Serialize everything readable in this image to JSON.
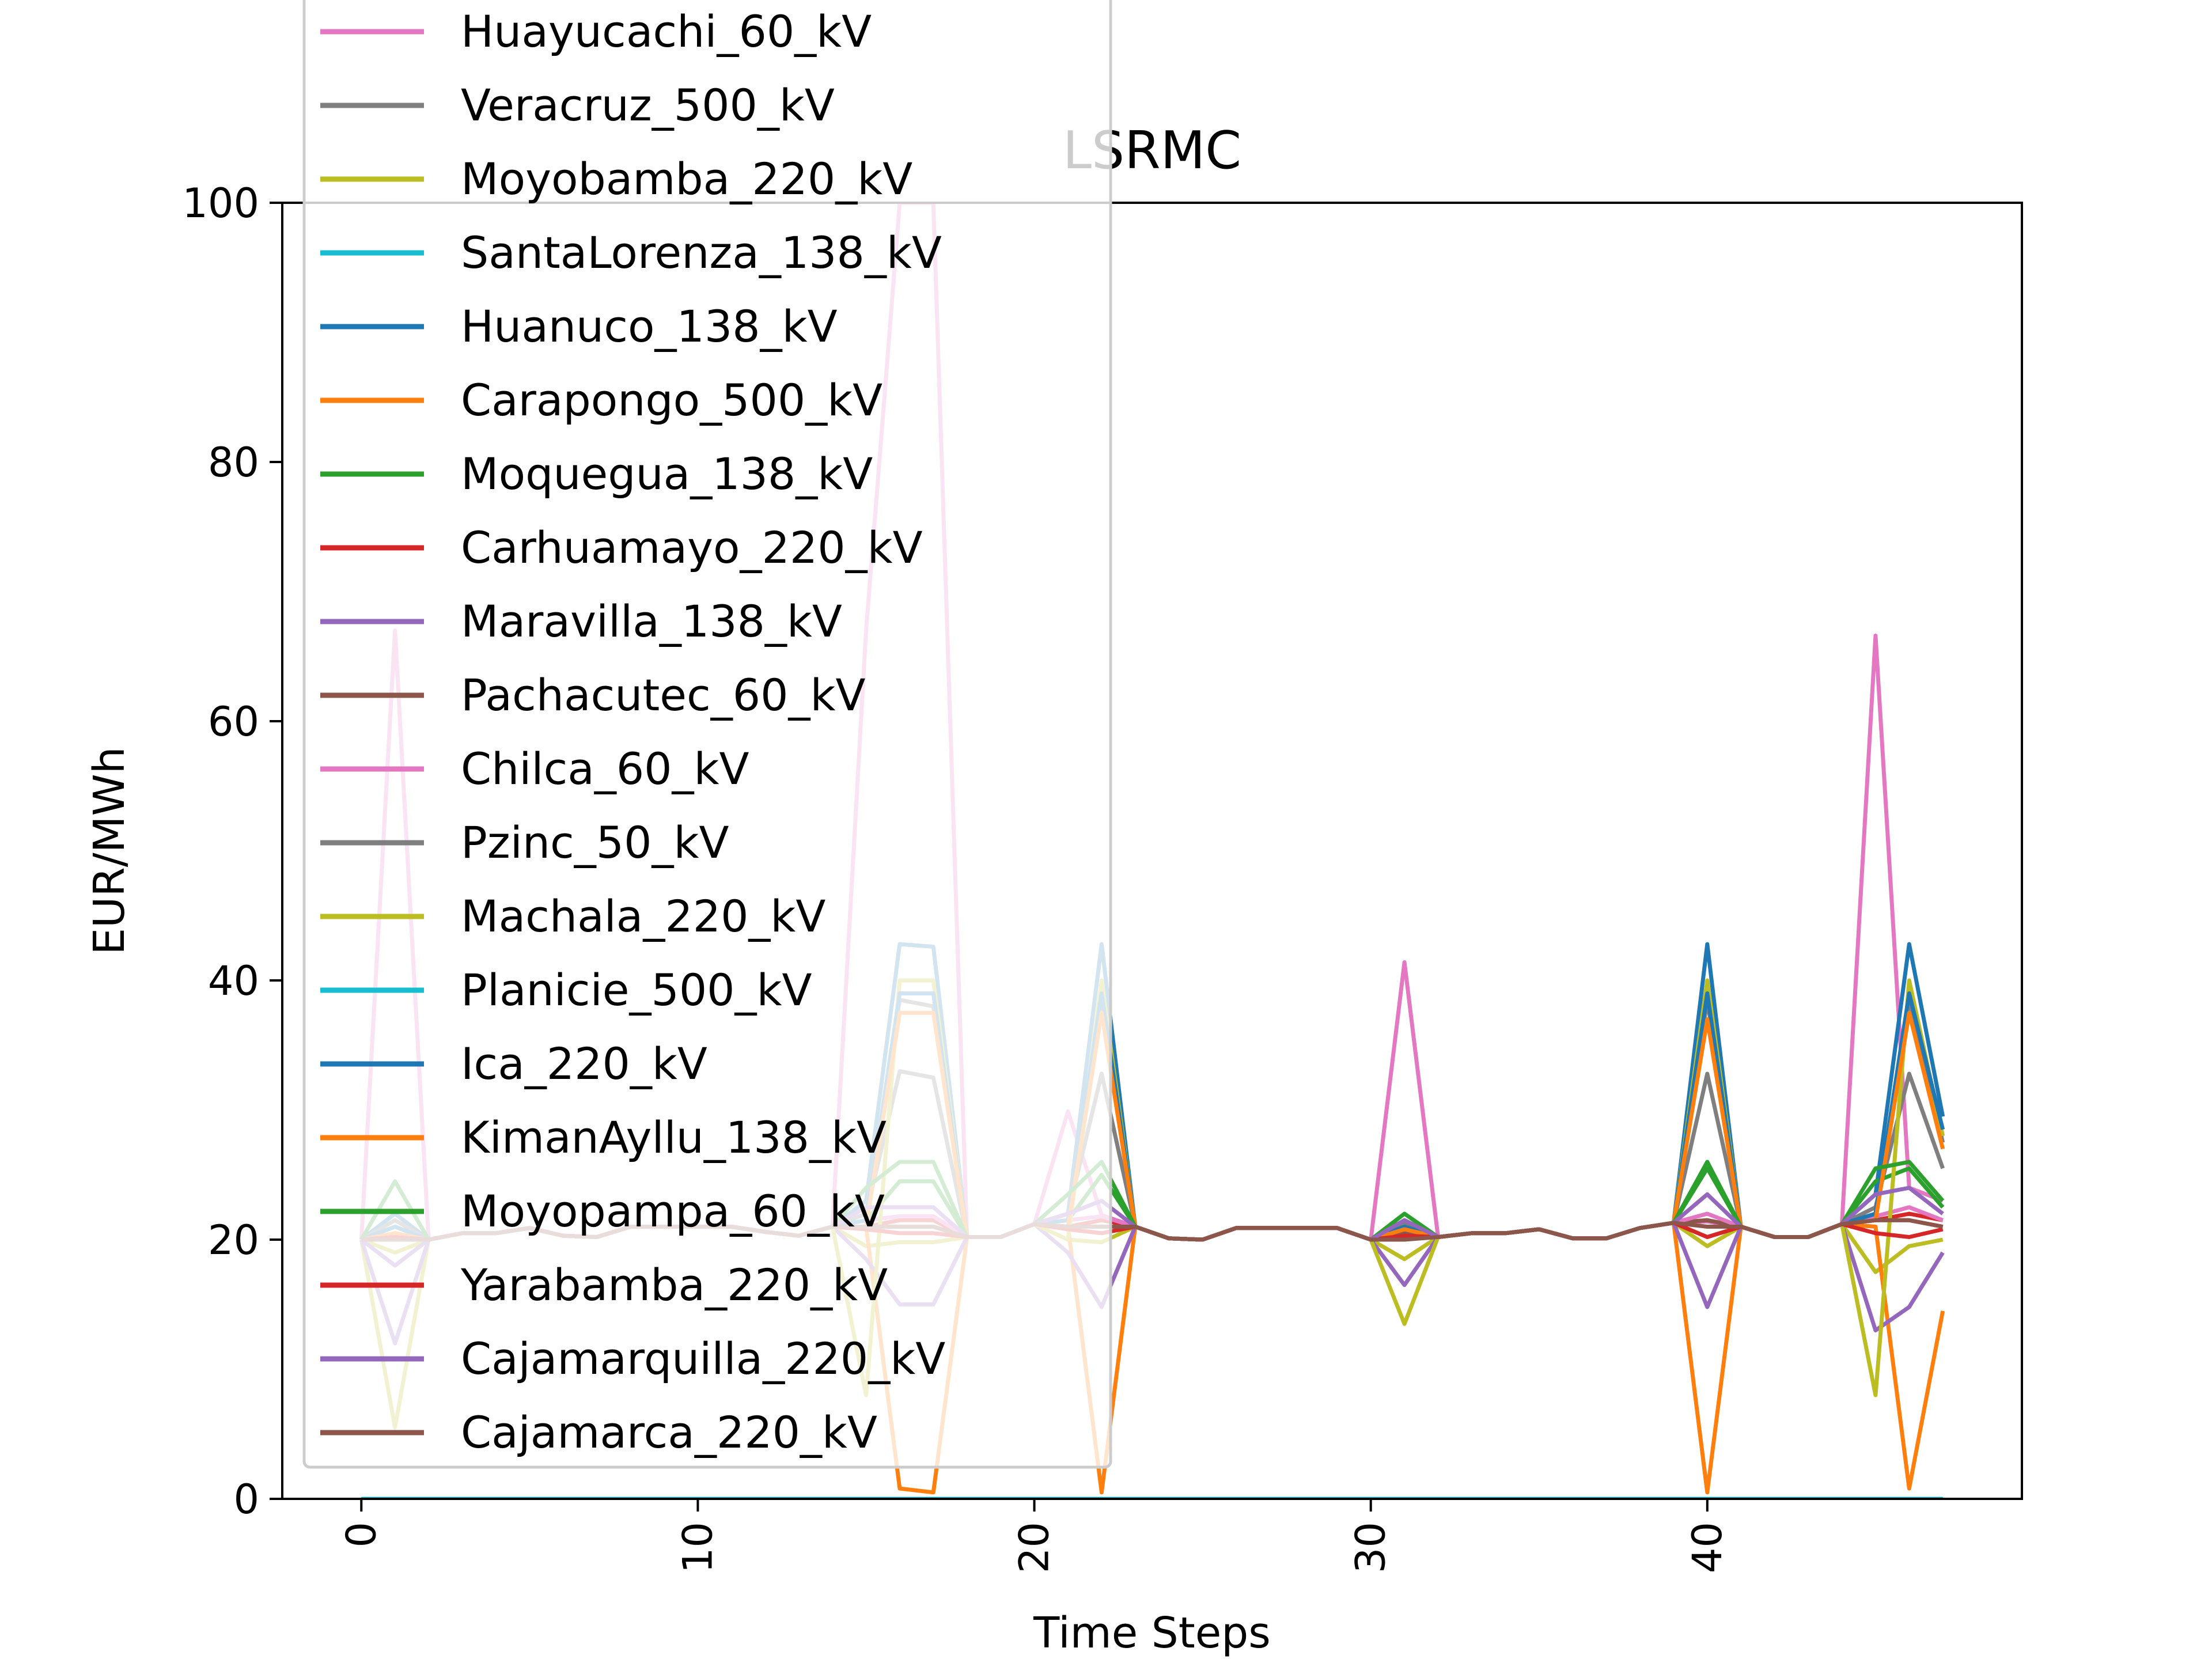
{
  "chart_data": {
    "type": "line",
    "title": "LSRMC",
    "xlabel": "Time Steps",
    "ylabel": "EUR/MWh",
    "xlim": [
      -2.35,
      49.35
    ],
    "ylim": [
      0,
      100
    ],
    "x_ticks": [
      0,
      10,
      20,
      30,
      40
    ],
    "y_ticks": [
      0,
      20,
      40,
      60,
      80,
      100
    ],
    "grid": false,
    "legend_position": "upper-left",
    "x": [
      0,
      1,
      2,
      3,
      4,
      5,
      6,
      7,
      8,
      9,
      10,
      11,
      12,
      13,
      14,
      15,
      16,
      17,
      18,
      19,
      20,
      21,
      22,
      23,
      24,
      25,
      26,
      27,
      28,
      29,
      30,
      31,
      32,
      33,
      34,
      35,
      36,
      37,
      38,
      39,
      40,
      41,
      42,
      43,
      44,
      45,
      46,
      47
    ],
    "series": [
      {
        "name": "Huayucachi_60_kV",
        "color": "#e377c2",
        "values": [
          20,
          67,
          20,
          20.5,
          20.5,
          20.9,
          20.3,
          20.2,
          21,
          21,
          21,
          21,
          20.6,
          20.3,
          21,
          67,
          100,
          100,
          20.2,
          20.2,
          21.2,
          29.9,
          21.9,
          21,
          20.1,
          20,
          20.9,
          20.9,
          20.9,
          20.9,
          20,
          41.4,
          20.2,
          20.5,
          20.5,
          20.8,
          20.1,
          20.1,
          20.9,
          21.3,
          21.4,
          21,
          20.2,
          20.2,
          21.2,
          66.6,
          24,
          23
        ]
      },
      {
        "name": "Veracruz_500_kV",
        "color": "#7f7f7f",
        "values": [
          20,
          22,
          20,
          20.5,
          20.5,
          20.9,
          20.3,
          20.2,
          21,
          21,
          21,
          21,
          20.6,
          20.3,
          21,
          22,
          33,
          32.5,
          20.2,
          20.2,
          21.2,
          22,
          32.8,
          21,
          20.1,
          20,
          20.9,
          20.9,
          20.9,
          20.9,
          20,
          21.2,
          20.2,
          20.5,
          20.5,
          20.8,
          20.1,
          20.1,
          20.9,
          21.3,
          32.8,
          21,
          20.2,
          20.2,
          21.2,
          22.5,
          32.8,
          25.5
        ]
      },
      {
        "name": "Moyobamba_220_kV",
        "color": "#bcbd22",
        "values": [
          20,
          19,
          20,
          20.5,
          20.5,
          20.9,
          20.3,
          20.2,
          21,
          21,
          21,
          21,
          20.6,
          20.3,
          21,
          19.5,
          19.8,
          19.8,
          20.2,
          20.2,
          21.2,
          20,
          19.8,
          21,
          20.1,
          20,
          20.9,
          20.9,
          20.9,
          20.9,
          20,
          18.5,
          20.2,
          20.5,
          20.5,
          20.8,
          20.1,
          20.1,
          20.9,
          21.3,
          19.5,
          21,
          20.2,
          20.2,
          21.2,
          17.5,
          19.5,
          20
        ]
      },
      {
        "name": "SantaLorenza_138_kV",
        "color": "#17becf",
        "values": [
          0,
          0,
          0,
          0,
          0,
          0,
          0,
          0,
          0,
          0,
          0,
          0,
          0,
          0,
          0,
          0,
          0,
          0,
          0,
          0,
          0,
          0,
          0,
          0,
          0,
          0,
          0,
          0,
          0,
          0,
          0,
          0,
          0,
          0,
          0,
          0,
          0,
          0,
          0,
          0,
          0,
          0,
          0,
          0,
          0,
          0,
          0,
          0
        ]
      },
      {
        "name": "Huanuco_138_kV",
        "color": "#1f77b4",
        "values": [
          20,
          22,
          20,
          20.5,
          20.5,
          20.9,
          20.3,
          20.2,
          21,
          21,
          21,
          21,
          20.6,
          20.3,
          21,
          23,
          42.8,
          42.6,
          20.2,
          20.2,
          21.2,
          22,
          42.8,
          21,
          20.1,
          20,
          20.9,
          20.9,
          20.9,
          20.9,
          20,
          21.5,
          20.2,
          20.5,
          20.5,
          20.8,
          20.1,
          20.1,
          20.9,
          21.3,
          42.8,
          21,
          20.2,
          20.2,
          21.2,
          23.5,
          42.8,
          29.5
        ]
      },
      {
        "name": "Carapongo_500_kV",
        "color": "#ff7f0e",
        "values": [
          20,
          20.5,
          20,
          20.5,
          20.5,
          20.9,
          20.3,
          20.2,
          21,
          21,
          21,
          21,
          20.6,
          20.3,
          21,
          21,
          0.8,
          0.5,
          20.2,
          20.2,
          21.2,
          21,
          0.5,
          21,
          20.1,
          20,
          20.9,
          20.9,
          20.9,
          20.9,
          20,
          20.5,
          20.2,
          20.5,
          20.5,
          20.8,
          20.1,
          20.1,
          20.9,
          21.3,
          0.5,
          21,
          20.2,
          20.2,
          21.2,
          21,
          0.8,
          14.5
        ]
      },
      {
        "name": "Moquegua_138_kV",
        "color": "#2ca02c",
        "values": [
          20,
          21,
          20,
          20.5,
          20.5,
          20.9,
          20.3,
          20.2,
          21,
          21,
          21,
          21,
          20.6,
          20.3,
          21,
          21.5,
          24.5,
          24.5,
          20.2,
          20.2,
          21.2,
          21.5,
          25,
          21,
          20.1,
          20,
          20.9,
          20.9,
          20.9,
          20.9,
          20,
          21.5,
          20.2,
          20.5,
          20.5,
          20.8,
          20.1,
          20.1,
          20.9,
          21.3,
          25.5,
          21,
          20.2,
          20.2,
          21.2,
          24.5,
          25.5,
          22.5
        ]
      },
      {
        "name": "Carhuamayo_220_kV",
        "color": "#d62728",
        "values": [
          20,
          20.3,
          20,
          20.5,
          20.5,
          20.9,
          20.3,
          20.2,
          21,
          21,
          21,
          21,
          20.6,
          20.3,
          21,
          21,
          21.5,
          21.5,
          20.2,
          20.2,
          21.2,
          21,
          21.5,
          21,
          20.1,
          20,
          20.9,
          20.9,
          20.9,
          20.9,
          20,
          20.5,
          20.2,
          20.5,
          20.5,
          20.8,
          20.1,
          20.1,
          20.9,
          21.3,
          21.5,
          21,
          20.2,
          20.2,
          21.2,
          21.5,
          22,
          21.5
        ]
      },
      {
        "name": "Maravilla_138_kV",
        "color": "#9467bd",
        "values": [
          20,
          18,
          20,
          20.5,
          20.5,
          20.9,
          20.3,
          20.2,
          21,
          21,
          21,
          21,
          20.6,
          20.3,
          21,
          18.5,
          15,
          15,
          20.2,
          20.2,
          21.2,
          19,
          14.8,
          21,
          20.1,
          20,
          20.9,
          20.9,
          20.9,
          20.9,
          20,
          16.5,
          20.2,
          20.5,
          20.5,
          20.8,
          20.1,
          20.1,
          20.9,
          21.3,
          14.8,
          21,
          20.2,
          20.2,
          21.2,
          13,
          14.8,
          19
        ]
      },
      {
        "name": "Pachacutec_60_kV",
        "color": "#8c564b",
        "values": [
          20,
          20.3,
          20,
          20.5,
          20.5,
          20.9,
          20.3,
          20.2,
          21,
          21,
          21,
          21,
          20.6,
          20.3,
          21,
          21,
          21,
          21,
          20.2,
          20.2,
          21.2,
          21,
          21,
          21,
          20.1,
          20,
          20.9,
          20.9,
          20.9,
          20.9,
          20,
          20.5,
          20.2,
          20.5,
          20.5,
          20.8,
          20.1,
          20.1,
          20.9,
          21.3,
          21.5,
          21,
          20.2,
          20.2,
          21.2,
          21.5,
          21.5,
          21
        ]
      },
      {
        "name": "Chilca_60_kV",
        "color": "#e377c2",
        "values": [
          20,
          20.5,
          20,
          20.5,
          20.5,
          20.9,
          20.3,
          20.2,
          21,
          21,
          21,
          21,
          20.6,
          20.3,
          21,
          21.5,
          21.8,
          21.8,
          20.2,
          20.2,
          21.2,
          21.5,
          21.8,
          21,
          20.1,
          20,
          20.9,
          20.9,
          20.9,
          20.9,
          20,
          20.8,
          20.2,
          20.5,
          20.5,
          20.8,
          20.1,
          20.1,
          20.9,
          21.3,
          22,
          21,
          20.2,
          20.2,
          21.2,
          21.8,
          22.5,
          21.5
        ]
      },
      {
        "name": "Pzinc_50_kV",
        "color": "#7f7f7f",
        "values": [
          20,
          21.5,
          20,
          20.5,
          20.5,
          20.9,
          20.3,
          20.2,
          21,
          21,
          21,
          21,
          20.6,
          20.3,
          21,
          22,
          38.5,
          38,
          20.2,
          20.2,
          21.2,
          22,
          38.5,
          21,
          20.1,
          20,
          20.9,
          20.9,
          20.9,
          20.9,
          20,
          21,
          20.2,
          20.5,
          20.5,
          20.8,
          20.1,
          20.1,
          20.9,
          21.3,
          38.5,
          21,
          20.2,
          20.2,
          21.2,
          22,
          38.5,
          27.5
        ]
      },
      {
        "name": "Machala_220_kV",
        "color": "#bcbd22",
        "values": [
          20,
          5.5,
          20,
          20.5,
          20.5,
          20.9,
          20.3,
          20.2,
          21,
          21,
          21,
          21,
          20.6,
          20.3,
          21,
          8,
          40,
          40,
          20.2,
          20.2,
          21.2,
          20,
          40,
          21,
          20.1,
          20,
          20.9,
          20.9,
          20.9,
          20.9,
          20,
          13.5,
          20.2,
          20.5,
          20.5,
          20.8,
          20.1,
          20.1,
          20.9,
          21.3,
          40,
          21,
          20.2,
          20.2,
          21.2,
          8,
          40,
          28
        ]
      },
      {
        "name": "Planicie_500_kV",
        "color": "#17becf",
        "values": [
          0,
          0,
          0,
          0,
          0,
          0,
          0,
          0,
          0,
          0,
          0,
          0,
          0,
          0,
          0,
          0,
          0,
          0,
          0,
          0,
          0,
          0,
          0,
          0,
          0,
          0,
          0,
          0,
          0,
          0,
          0,
          0,
          0,
          0,
          0,
          0,
          0,
          0,
          0,
          0,
          0,
          0,
          0,
          0,
          0,
          0,
          0,
          0
        ]
      },
      {
        "name": "Ica_220_kV",
        "color": "#1f77b4",
        "values": [
          20,
          21,
          20,
          20.5,
          20.5,
          20.9,
          20.3,
          20.2,
          21,
          21,
          21,
          21,
          20.6,
          20.3,
          21,
          21.5,
          39,
          39,
          20.2,
          20.2,
          21.2,
          21.5,
          39,
          21,
          20.1,
          20,
          20.9,
          20.9,
          20.9,
          20.9,
          20,
          21,
          20.2,
          20.5,
          20.5,
          20.8,
          20.1,
          20.1,
          20.9,
          21.3,
          39,
          21,
          20.2,
          20.2,
          21.2,
          22,
          39,
          28.5
        ]
      },
      {
        "name": "KimanAyllu_138_kV",
        "color": "#ff7f0e",
        "values": [
          20,
          20.5,
          20,
          20.5,
          20.5,
          20.9,
          20.3,
          20.2,
          21,
          21,
          21,
          21,
          20.6,
          20.3,
          21,
          21,
          37.5,
          37.5,
          20.2,
          20.2,
          21.2,
          21,
          37.5,
          21,
          20.1,
          20,
          20.9,
          20.9,
          20.9,
          20.9,
          20,
          20.8,
          20.2,
          20.5,
          20.5,
          20.8,
          20.1,
          20.1,
          20.9,
          21.3,
          37,
          21,
          20.2,
          20.2,
          21.2,
          21.5,
          37.5,
          27
        ]
      },
      {
        "name": "Moyopampa_60_kV",
        "color": "#2ca02c",
        "values": [
          20,
          24.5,
          20,
          20.5,
          20.5,
          20.9,
          20.3,
          20.2,
          21,
          21,
          21,
          21,
          20.6,
          20.3,
          21,
          24,
          26,
          26,
          20.2,
          20.2,
          21.2,
          23.5,
          26,
          21,
          20.1,
          20,
          20.9,
          20.9,
          20.9,
          20.9,
          20,
          22,
          20.2,
          20.5,
          20.5,
          20.8,
          20.1,
          20.1,
          20.9,
          21.3,
          26,
          21,
          20.2,
          20.2,
          21.2,
          25.5,
          26,
          23
        ]
      },
      {
        "name": "Yarabamba_220_kV",
        "color": "#d62728",
        "values": [
          20,
          20.2,
          20,
          20.5,
          20.5,
          20.9,
          20.3,
          20.2,
          21,
          21,
          21,
          21,
          20.6,
          20.3,
          21,
          20.8,
          20.5,
          20.5,
          20.2,
          20.2,
          21.2,
          20.8,
          20.5,
          21,
          20.1,
          20,
          20.9,
          20.9,
          20.9,
          20.9,
          20,
          20.3,
          20.2,
          20.5,
          20.5,
          20.8,
          20.1,
          20.1,
          20.9,
          21.3,
          20.2,
          21,
          20.2,
          20.2,
          21.2,
          20.5,
          20.2,
          20.8
        ]
      },
      {
        "name": "Cajamarquilla_220_kV",
        "color": "#9467bd",
        "values": [
          20,
          12,
          20,
          20.5,
          20.5,
          20.9,
          20.3,
          20.2,
          21,
          21,
          21,
          21,
          20.6,
          20.3,
          21,
          22.5,
          22.5,
          22.5,
          20.2,
          20.2,
          21.2,
          22,
          23,
          21,
          20.1,
          20,
          20.9,
          20.9,
          20.9,
          20.9,
          20,
          21.5,
          20.2,
          20.5,
          20.5,
          20.8,
          20.1,
          20.1,
          20.9,
          21.3,
          23.5,
          21,
          20.2,
          20.2,
          21.2,
          23.5,
          24,
          22
        ]
      },
      {
        "name": "Cajamarca_220_kV",
        "color": "#8c564b",
        "values": [
          20,
          20,
          20,
          20.5,
          20.5,
          20.9,
          20.3,
          20.2,
          21,
          21,
          21,
          21,
          20.6,
          20.3,
          21,
          21,
          21,
          21,
          20.2,
          20.2,
          21.2,
          21,
          21,
          21,
          20.1,
          20,
          20.9,
          20.9,
          20.9,
          20.9,
          20,
          20,
          20.2,
          20.5,
          20.5,
          20.8,
          20.1,
          20.1,
          20.9,
          21.3,
          21,
          21,
          20.2,
          20.2,
          21.2,
          21.5,
          21.5,
          21
        ]
      }
    ]
  }
}
